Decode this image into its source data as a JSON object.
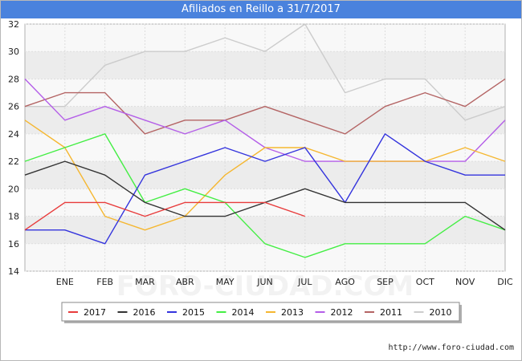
{
  "header": {
    "title": "Afiliados en Reillo a 31/7/2017"
  },
  "footer": {
    "url": "http://www.foro-ciudad.com"
  },
  "watermark": "FORO-CIUDAD.COM",
  "chart_data": {
    "type": "line",
    "title": "Afiliados en Reillo a 31/7/2017",
    "xlabel": "",
    "ylabel": "",
    "x_points": [
      "",
      "ENE",
      "FEB",
      "MAR",
      "ABR",
      "MAY",
      "JUN",
      "JUL",
      "AGO",
      "SEP",
      "OCT",
      "NOV",
      "DIC"
    ],
    "ylim": [
      14,
      32
    ],
    "yticks": [
      14,
      16,
      18,
      20,
      22,
      24,
      26,
      28,
      30,
      32
    ],
    "grid": true,
    "legend_position": "bottom",
    "series": [
      {
        "name": "2017",
        "color": "#e83c3c",
        "values": [
          17,
          19,
          19,
          18,
          19,
          19,
          19,
          18
        ]
      },
      {
        "name": "2016",
        "color": "#333333",
        "values": [
          21,
          22,
          21,
          19,
          18,
          18,
          19,
          20,
          19,
          19,
          19,
          19,
          17
        ]
      },
      {
        "name": "2015",
        "color": "#3434dd",
        "values": [
          17,
          17,
          16,
          21,
          22,
          23,
          22,
          23,
          19,
          24,
          22,
          21,
          21
        ]
      },
      {
        "name": "2014",
        "color": "#44ee44",
        "values": [
          22,
          23,
          24,
          19,
          20,
          19,
          16,
          15,
          16,
          16,
          16,
          18,
          17
        ]
      },
      {
        "name": "2013",
        "color": "#f5b731",
        "values": [
          25,
          23,
          18,
          17,
          18,
          21,
          23,
          23,
          22,
          22,
          22,
          23,
          22
        ]
      },
      {
        "name": "2012",
        "color": "#b45ee8",
        "values": [
          28,
          25,
          26,
          25,
          24,
          25,
          23,
          22,
          22,
          22,
          22,
          22,
          25
        ]
      },
      {
        "name": "2011",
        "color": "#b46464",
        "values": [
          26,
          27,
          27,
          24,
          25,
          25,
          26,
          25,
          24,
          26,
          27,
          26,
          28
        ]
      },
      {
        "name": "2010",
        "color": "#cccccc",
        "values": [
          26,
          26,
          29,
          30,
          30,
          31,
          30,
          32,
          27,
          28,
          28,
          25,
          26
        ]
      }
    ]
  }
}
